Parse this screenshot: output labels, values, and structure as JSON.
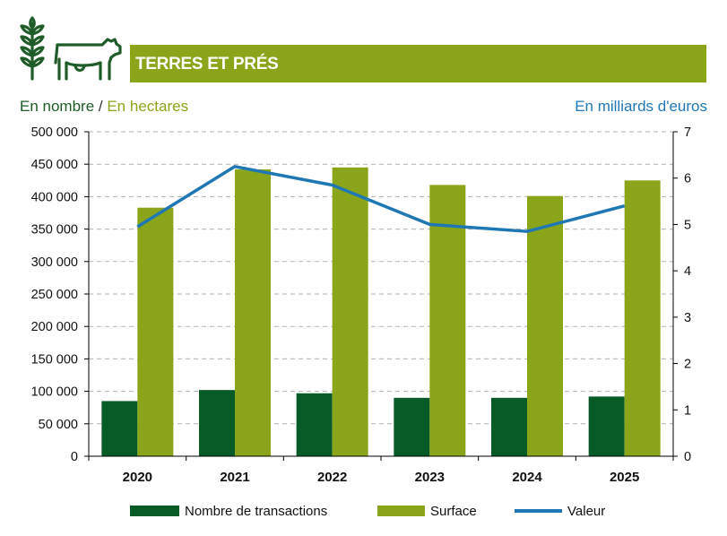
{
  "header": {
    "title": "TERRES ET PRÉS",
    "icons": [
      "wheat-icon",
      "cow-icon"
    ],
    "banner_color": "#8aa51a",
    "icon_color": "#1f5c2a"
  },
  "units": {
    "left_part1": "En nombre",
    "left_sep": " / ",
    "left_part2": "En hectares",
    "right": "En milliards d'euros"
  },
  "chart_data": {
    "type": "bar",
    "categories": [
      "2020",
      "2021",
      "2022",
      "2023",
      "2024",
      "2025"
    ],
    "series": [
      {
        "name": "Nombre de transactions",
        "type": "bar",
        "axis": "left",
        "color": "#075b27",
        "values": [
          85000,
          102000,
          97000,
          90000,
          90000,
          92000
        ]
      },
      {
        "name": "Surface",
        "type": "bar",
        "axis": "left",
        "color": "#8aa51a",
        "values": [
          383000,
          442000,
          445000,
          418000,
          401000,
          425000
        ]
      },
      {
        "name": "Valeur",
        "type": "line",
        "axis": "right",
        "color": "#1f78b4",
        "values": [
          4.95,
          6.25,
          5.85,
          5.0,
          4.85,
          5.4
        ]
      }
    ],
    "y_left": {
      "min": 0,
      "max": 500000,
      "step": 50000,
      "tick_labels": [
        "0",
        "50 000",
        "100 000",
        "150 000",
        "200 000",
        "250 000",
        "300 000",
        "350 000",
        "400 000",
        "450 000",
        "500 000"
      ]
    },
    "y_right": {
      "min": 0,
      "max": 7,
      "step": 1,
      "tick_labels": [
        "0",
        "1",
        "2",
        "3",
        "4",
        "5",
        "6",
        "7"
      ]
    },
    "grid": "horizontal dashed",
    "legend_position": "bottom"
  }
}
